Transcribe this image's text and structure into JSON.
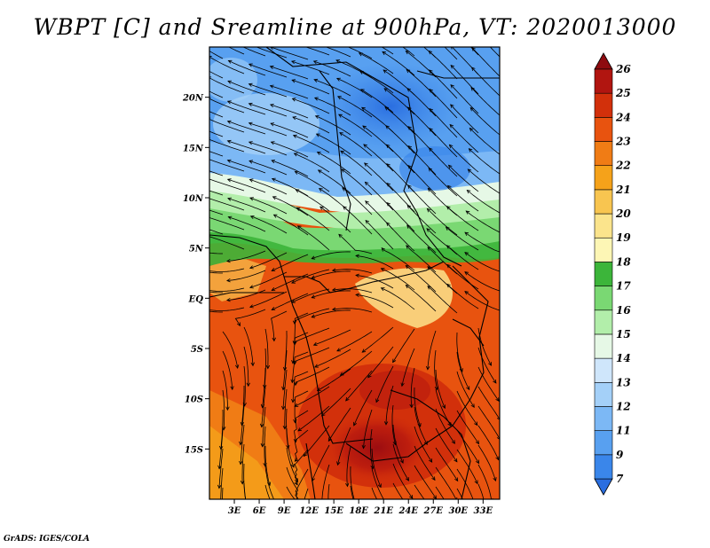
{
  "title": "WBPT [C] and Sreamline at 900hPa, VT: 2020013000",
  "credit": "GrADS: IGES/COLA",
  "map": {
    "variable": "WBPT",
    "units": "C",
    "level": "900hPa",
    "valid_time": "2020013000",
    "lat_labels": [
      "20N",
      "15N",
      "10N",
      "5N",
      "EQ",
      "5S",
      "10S",
      "15S"
    ],
    "lat_values": [
      20,
      15,
      10,
      5,
      0,
      -5,
      -10,
      -15
    ],
    "lon_labels": [
      "3E",
      "6E",
      "9E",
      "12E",
      "15E",
      "18E",
      "21E",
      "24E",
      "27E",
      "30E",
      "33E"
    ],
    "lon_values": [
      3,
      6,
      9,
      12,
      15,
      18,
      21,
      24,
      27,
      30,
      33
    ],
    "lat_range": [
      -20,
      25
    ],
    "lon_range": [
      0,
      35
    ]
  },
  "colorbar": {
    "levels": [
      "7",
      "9",
      "11",
      "12",
      "13",
      "14",
      "15",
      "16",
      "17",
      "18",
      "19",
      "20",
      "21",
      "22",
      "23",
      "24",
      "25",
      "26"
    ],
    "colors": [
      "#2a6ee0",
      "#3a86ea",
      "#58a0f0",
      "#7cb8f5",
      "#a4d0f8",
      "#cfe6fb",
      "#e6f8e6",
      "#b2eeaa",
      "#7ad873",
      "#3cb53a",
      "#fdf6b5",
      "#fbe48c",
      "#f8c550",
      "#f5a21a",
      "#f07c15",
      "#e8530f",
      "#d2300b",
      "#b11510",
      "#8e0b10"
    ]
  }
}
